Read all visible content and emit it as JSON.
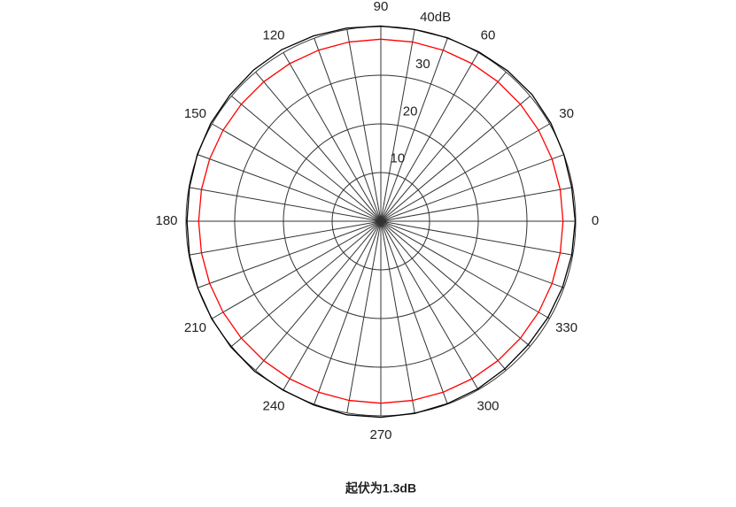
{
  "chart_data": {
    "type": "polar",
    "title": "起伏为1.3dB",
    "theta": [
      0,
      10,
      20,
      30,
      40,
      50,
      60,
      70,
      80,
      90,
      100,
      110,
      120,
      130,
      140,
      150,
      160,
      170,
      180,
      190,
      200,
      210,
      220,
      230,
      240,
      250,
      260,
      270,
      280,
      290,
      300,
      310,
      320,
      330,
      340,
      350
    ],
    "series": [
      {
        "color": "#000000",
        "values": [
          39.9,
          39.8,
          40.0,
          40.3,
          40.5,
          40.4,
          40.2,
          40.1,
          40.0,
          40.1,
          40.3,
          40.5,
          40.7,
          40.6,
          40.4,
          40.3,
          40.1,
          39.9,
          39.8,
          39.9,
          40.0,
          40.1,
          40.2,
          40.3,
          40.1,
          40.2,
          40.4,
          40.3,
          40.1,
          39.9,
          39.8,
          39.6,
          39.5,
          39.6,
          39.7,
          39.8
        ]
      },
      {
        "color": "#ff0000",
        "values": [
          37.4,
          37.4,
          37.4,
          37.4,
          37.4,
          37.4,
          37.4,
          37.4,
          37.4,
          37.4,
          37.4,
          37.4,
          37.4,
          37.4,
          37.4,
          37.4,
          37.4,
          37.4,
          37.4,
          37.4,
          37.4,
          37.4,
          37.4,
          37.4,
          37.4,
          37.4,
          37.4,
          37.4,
          37.4,
          37.4,
          37.4,
          37.4,
          37.4,
          37.4,
          37.4,
          37.4
        ]
      }
    ],
    "rlim": [
      0,
      40
    ],
    "rticks": [
      10,
      20,
      30,
      {
        "value": 40,
        "label": "40dB"
      }
    ],
    "thetaticks": [
      0,
      30,
      60,
      90,
      120,
      150,
      180,
      210,
      240,
      270,
      300,
      330
    ],
    "thetagrid": [
      0,
      10,
      20,
      30,
      40,
      50,
      60,
      70,
      80,
      90,
      100,
      110,
      120,
      130,
      140,
      150,
      160,
      170,
      180,
      190,
      200,
      210,
      220,
      230,
      240,
      250,
      260,
      270,
      280,
      290,
      300,
      310,
      320,
      330,
      340,
      350
    ],
    "grid": true
  }
}
